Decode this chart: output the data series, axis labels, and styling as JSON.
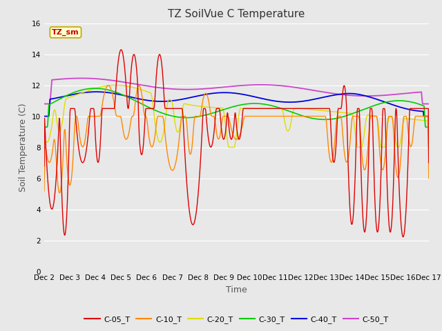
{
  "title": "TZ SoilVue C Temperature",
  "xlabel": "Time",
  "ylabel": "Soil Temperature (C)",
  "ylim": [
    0,
    16
  ],
  "xlim": [
    0,
    15
  ],
  "yticks": [
    0,
    2,
    4,
    6,
    8,
    10,
    12,
    14,
    16
  ],
  "xtick_labels": [
    "Dec 2",
    "Dec 3",
    "Dec 4",
    "Dec 5",
    "Dec 6",
    "Dec 7",
    "Dec 8",
    "Dec 9",
    "Dec 10",
    "Dec 11",
    "Dec 12",
    "Dec 13",
    "Dec 14",
    "Dec 15",
    "Dec 16",
    "Dec 17"
  ],
  "background_color": "#e8e8e8",
  "plot_bg_color": "#e8e8e8",
  "annotation_text": "TZ_sm",
  "annotation_bg": "#ffffcc",
  "annotation_border": "#bbaa00",
  "series_colors": {
    "C-05_T": "#dd0000",
    "C-10_T": "#ff8800",
    "C-20_T": "#dddd00",
    "C-30_T": "#00cc00",
    "C-40_T": "#0000dd",
    "C-50_T": "#cc44cc"
  },
  "legend_entries": [
    "C-05_T",
    "C-10_T",
    "C-20_T",
    "C-30_T",
    "C-40_T",
    "C-50_T"
  ],
  "title_fontsize": 11,
  "axis_label_fontsize": 9,
  "tick_fontsize": 7.5
}
